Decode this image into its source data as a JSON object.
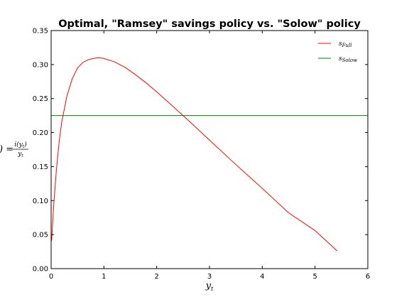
{
  "chart_data": {
    "type": "line",
    "title": "Optimal, \"Ramsey\" savings policy vs. \"Solow\" policy",
    "xlabel": {
      "base": "y",
      "sub": "t"
    },
    "ylabel": {
      "lhs": ") =",
      "numerator": "i(y",
      "numerator_sub": "t",
      "numerator_close": ")",
      "denominator": "y",
      "denominator_sub": "t"
    },
    "xlim": [
      0,
      6
    ],
    "ylim": [
      0,
      0.35
    ],
    "xticks": [
      0,
      1,
      2,
      3,
      4,
      5,
      6
    ],
    "xtick_labels": [
      "0",
      "1",
      "2",
      "3",
      "4",
      "5",
      "6"
    ],
    "yticks": [
      0.0,
      0.05,
      0.1,
      0.15,
      0.2,
      0.25,
      0.3,
      0.35
    ],
    "ytick_labels": [
      "0.00",
      "0.05",
      "0.10",
      "0.15",
      "0.20",
      "0.25",
      "0.30",
      "0.35"
    ],
    "grid": false,
    "legend_position": "top-right",
    "series": [
      {
        "name": "s",
        "name_sub": "Full",
        "color": "#ff0000",
        "x": [
          0.01,
          0.05,
          0.1,
          0.15,
          0.2,
          0.3,
          0.4,
          0.5,
          0.6,
          0.7,
          0.8,
          0.9,
          1.0,
          1.2,
          1.4,
          1.6,
          1.8,
          2.0,
          2.2,
          2.4,
          2.6,
          3.0,
          3.5,
          4.0,
          4.5,
          5.0,
          5.42
        ],
        "y": [
          0.041,
          0.095,
          0.145,
          0.185,
          0.215,
          0.254,
          0.279,
          0.295,
          0.303,
          0.307,
          0.309,
          0.31,
          0.309,
          0.304,
          0.296,
          0.285,
          0.273,
          0.26,
          0.246,
          0.232,
          0.218,
          0.189,
          0.153,
          0.118,
          0.082,
          0.056,
          0.026
        ]
      },
      {
        "name": "s",
        "name_sub": "Solow",
        "color": "#007f00",
        "x": [
          0,
          6
        ],
        "y": [
          0.225,
          0.225
        ]
      }
    ]
  }
}
